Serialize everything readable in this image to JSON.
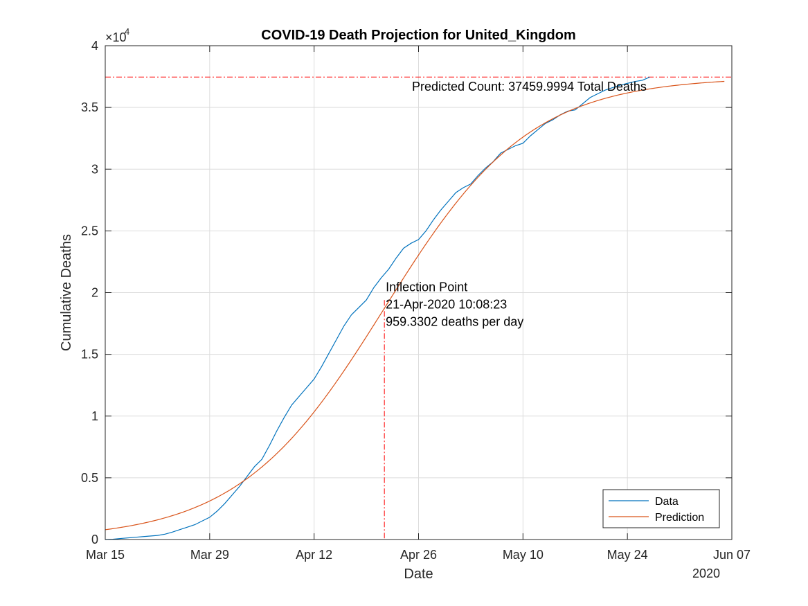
{
  "chart_data": {
    "type": "line",
    "title": "COVID-19 Death Projection for United_Kingdom",
    "xlabel": "Date",
    "ylabel": "Cumulative Deaths",
    "x_year_label": "2020",
    "y_exponent_label": "×10",
    "y_exponent_power": "4",
    "xlim_days": [
      0,
      84
    ],
    "x_ticks": [
      {
        "day": 0,
        "label": "Mar 15"
      },
      {
        "day": 14,
        "label": "Mar 29"
      },
      {
        "day": 28,
        "label": "Apr 12"
      },
      {
        "day": 42,
        "label": "Apr 26"
      },
      {
        "day": 56,
        "label": "May 10"
      },
      {
        "day": 70,
        "label": "May 24"
      },
      {
        "day": 84,
        "label": "Jun 07"
      }
    ],
    "ylim": [
      0,
      40000
    ],
    "y_ticks": [
      {
        "value": 0,
        "label": "0"
      },
      {
        "value": 5000,
        "label": "0.5"
      },
      {
        "value": 10000,
        "label": "1"
      },
      {
        "value": 15000,
        "label": "1.5"
      },
      {
        "value": 20000,
        "label": "2"
      },
      {
        "value": 25000,
        "label": "2.5"
      },
      {
        "value": 30000,
        "label": "3"
      },
      {
        "value": 35000,
        "label": "3.5"
      },
      {
        "value": 40000,
        "label": "4"
      }
    ],
    "grid": true,
    "legend_position": "bottom-right",
    "series": [
      {
        "name": "Data",
        "color": "#0072bd",
        "points": [
          [
            0,
            0
          ],
          [
            1,
            20
          ],
          [
            2,
            80
          ],
          [
            3,
            130
          ],
          [
            4,
            180
          ],
          [
            5,
            230
          ],
          [
            6,
            280
          ],
          [
            7,
            330
          ],
          [
            8,
            430
          ],
          [
            9,
            600
          ],
          [
            10,
            800
          ],
          [
            11,
            1000
          ],
          [
            12,
            1200
          ],
          [
            13,
            1500
          ],
          [
            14,
            1800
          ],
          [
            15,
            2300
          ],
          [
            16,
            2900
          ],
          [
            17,
            3600
          ],
          [
            18,
            4300
          ],
          [
            19,
            5100
          ],
          [
            20,
            5900
          ],
          [
            21,
            6500
          ],
          [
            22,
            7600
          ],
          [
            23,
            8800
          ],
          [
            24,
            9900
          ],
          [
            25,
            10900
          ],
          [
            26,
            11600
          ],
          [
            27,
            12300
          ],
          [
            28,
            13000
          ],
          [
            29,
            14000
          ],
          [
            30,
            15100
          ],
          [
            31,
            16200
          ],
          [
            32,
            17300
          ],
          [
            33,
            18200
          ],
          [
            34,
            18800
          ],
          [
            35,
            19400
          ],
          [
            36,
            20400
          ],
          [
            37,
            21200
          ],
          [
            38,
            21900
          ],
          [
            39,
            22800
          ],
          [
            40,
            23600
          ],
          [
            41,
            24000
          ],
          [
            42,
            24300
          ],
          [
            43,
            25000
          ],
          [
            44,
            25900
          ],
          [
            45,
            26700
          ],
          [
            46,
            27400
          ],
          [
            47,
            28100
          ],
          [
            48,
            28500
          ],
          [
            49,
            28800
          ],
          [
            50,
            29500
          ],
          [
            51,
            30100
          ],
          [
            52,
            30600
          ],
          [
            53,
            31300
          ],
          [
            54,
            31600
          ],
          [
            55,
            31900
          ],
          [
            56,
            32100
          ],
          [
            57,
            32700
          ],
          [
            58,
            33200
          ],
          [
            59,
            33700
          ],
          [
            60,
            34000
          ],
          [
            61,
            34400
          ],
          [
            62,
            34700
          ],
          [
            63,
            34800
          ],
          [
            64,
            35300
          ],
          [
            65,
            35800
          ],
          [
            66,
            36100
          ],
          [
            67,
            36400
          ],
          [
            68,
            36600
          ],
          [
            69,
            36800
          ],
          [
            70,
            36950
          ],
          [
            71,
            37100
          ],
          [
            72,
            37200
          ],
          [
            73,
            37460
          ]
        ]
      },
      {
        "name": "Prediction",
        "color": "#d95319",
        "logistic": {
          "K": 37460,
          "r": 0.1024,
          "t0": 37.42,
          "t_start": 0,
          "t_end": 83
        }
      }
    ],
    "annotations": [
      {
        "kind": "hline",
        "value": 37460,
        "color": "#ff0000",
        "style": "dashdot"
      },
      {
        "kind": "vline",
        "day": 37.42,
        "color": "#ff0000",
        "style": "dashdot",
        "y_top": 19400
      },
      {
        "kind": "text",
        "day": 31,
        "value": 36200,
        "text": "Predicted Count: 37459.9994 Total Deaths"
      },
      {
        "kind": "text",
        "day": 37.42,
        "value": 20000,
        "lines": [
          "Inflection Point",
          "21-Apr-2020 10:08:23",
          "959.3302 deaths per day"
        ]
      }
    ]
  }
}
